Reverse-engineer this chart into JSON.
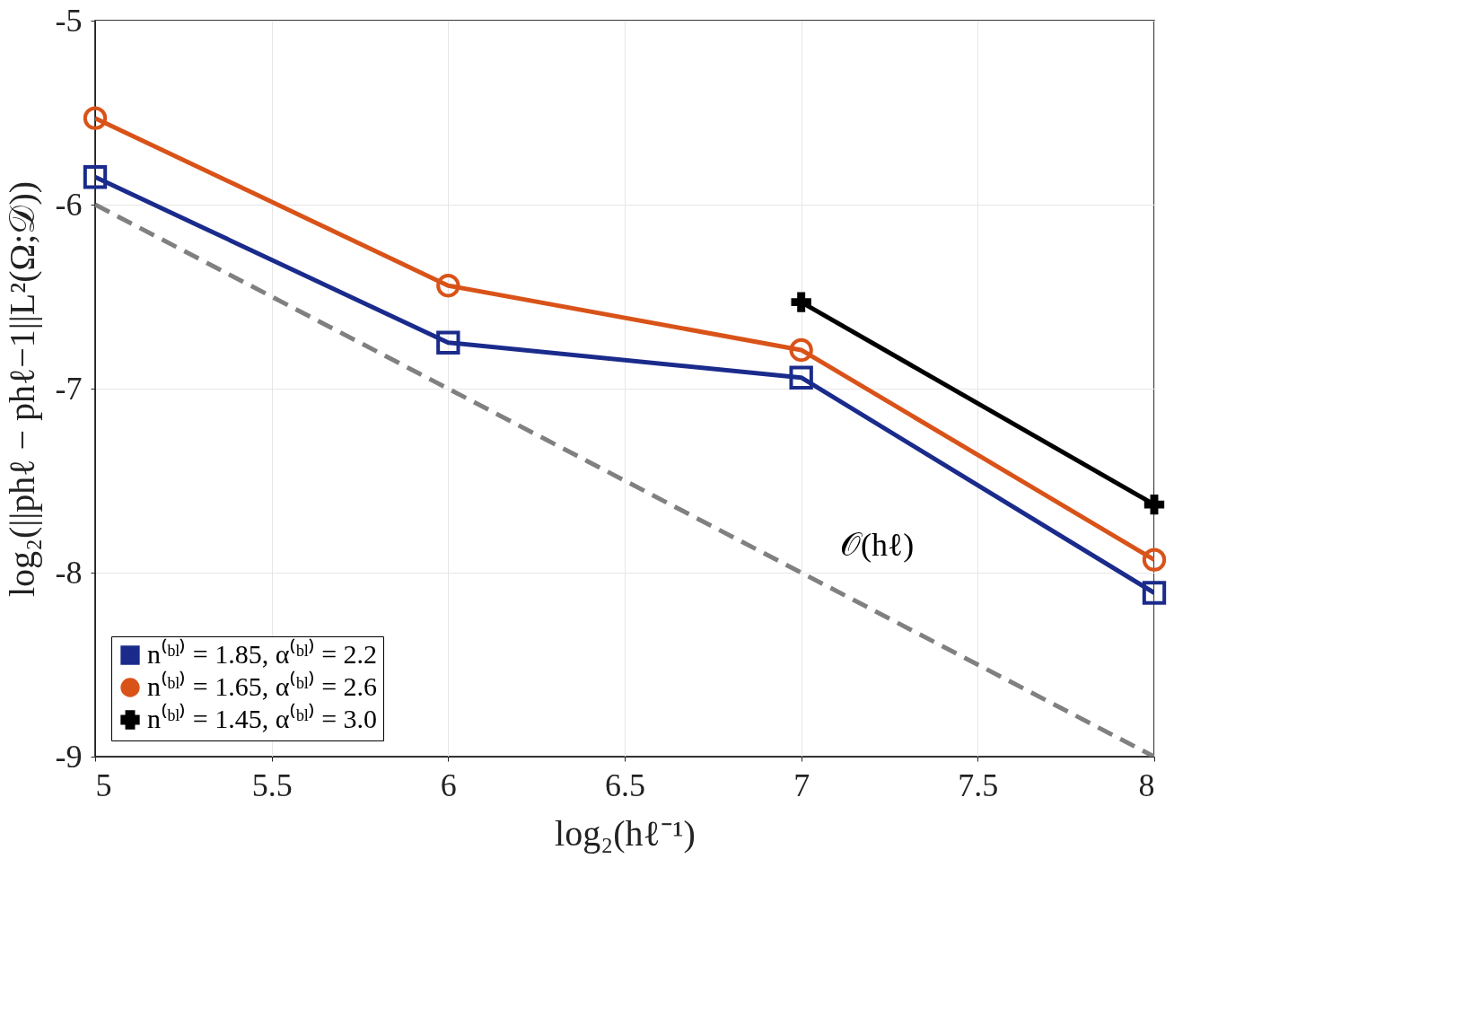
{
  "chart_data": {
    "type": "line",
    "xlabel": "log₂(hℓ⁻¹)",
    "ylabel": "log₂(||phℓ − phℓ−1||L²(Ω;𝒟))",
    "x": [
      5,
      6,
      7,
      8
    ],
    "series": [
      {
        "name": "n⁽ᵇˡ⁾ = 1.85, α⁽ᵇˡ⁾ = 2.2",
        "color": "#1a2b8c",
        "marker": "square",
        "values": [
          -5.85,
          -6.75,
          -6.94,
          -8.11
        ]
      },
      {
        "name": "n⁽ᵇˡ⁾ = 1.65, α⁽ᵇˡ⁾ = 2.6",
        "color": "#d95319",
        "marker": "circle",
        "values": [
          -5.53,
          -6.44,
          -6.79,
          -7.93
        ]
      },
      {
        "name": "n⁽ᵇˡ⁾ = 1.45, α⁽ᵇˡ⁾ = 3.0",
        "color": "#000000",
        "marker": "cross",
        "values": [
          null,
          null,
          -6.53,
          -7.63
        ]
      },
      {
        "color": "#808080",
        "marker": "none",
        "line_style": "dashed",
        "x": [
          5,
          8
        ],
        "values": [
          -6,
          -9
        ]
      }
    ],
    "annotations": [
      "𝒪(hℓ)"
    ],
    "xlim": [
      5,
      8
    ],
    "ylim": [
      -9,
      -5
    ],
    "xticks": [
      5,
      5.5,
      6,
      6.5,
      7,
      7.5,
      8
    ],
    "yticks": [
      -9,
      -8,
      -7,
      -6,
      -5
    ],
    "grid": true,
    "legend": "bottom left"
  }
}
